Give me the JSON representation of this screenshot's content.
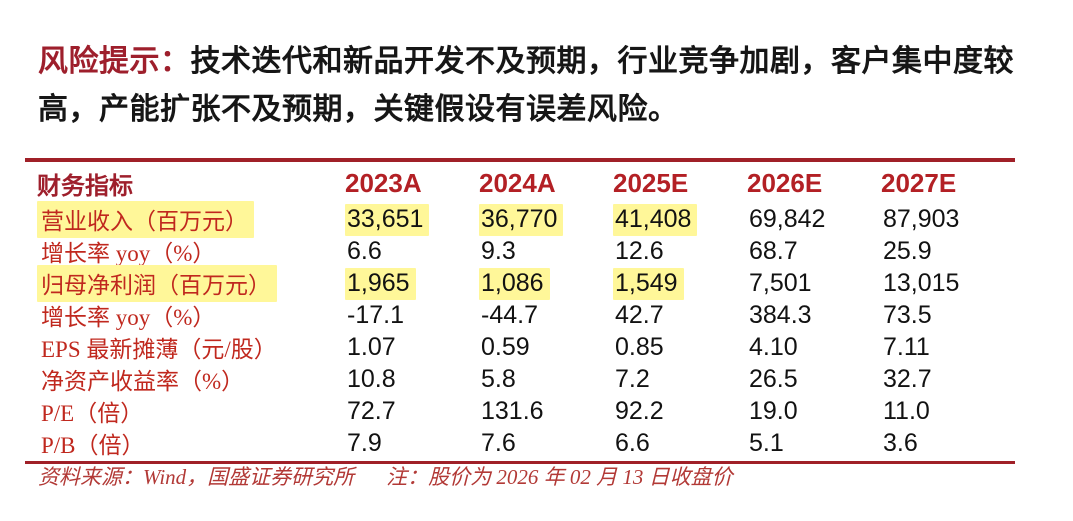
{
  "risk": {
    "label": "风险提示：",
    "text": "技术迭代和新品开发不及预期，行业竞争加剧，客户集中度较高，产能扩张不及预期，关键假设有误差风险。"
  },
  "table": {
    "header": {
      "indicator": "财务指标",
      "years": [
        "2023A",
        "2024A",
        "2025E",
        "2026E",
        "2027E"
      ]
    },
    "rows": [
      {
        "label": "营业收入（百万元）",
        "label_highlight": true,
        "values": [
          "33,651",
          "36,770",
          "41,408",
          "69,842",
          "87,903"
        ],
        "highlight": [
          true,
          true,
          true,
          false,
          false
        ]
      },
      {
        "label": "增长率 yoy（%）",
        "label_highlight": false,
        "values": [
          "6.6",
          "9.3",
          "12.6",
          "68.7",
          "25.9"
        ],
        "highlight": [
          false,
          false,
          false,
          false,
          false
        ]
      },
      {
        "label": "归母净利润（百万元）",
        "label_highlight": true,
        "values": [
          "1,965",
          "1,086",
          "1,549",
          "7,501",
          "13,015"
        ],
        "highlight": [
          true,
          true,
          true,
          false,
          false
        ]
      },
      {
        "label": "增长率 yoy（%）",
        "label_highlight": false,
        "values": [
          "-17.1",
          "-44.7",
          "42.7",
          "384.3",
          "73.5"
        ],
        "highlight": [
          false,
          false,
          false,
          false,
          false
        ]
      },
      {
        "label": "EPS 最新摊薄（元/股）",
        "label_highlight": false,
        "values": [
          "1.07",
          "0.59",
          "0.85",
          "4.10",
          "7.11"
        ],
        "highlight": [
          false,
          false,
          false,
          false,
          false
        ]
      },
      {
        "label": "净资产收益率（%）",
        "label_highlight": false,
        "values": [
          "10.8",
          "5.8",
          "7.2",
          "26.5",
          "32.7"
        ],
        "highlight": [
          false,
          false,
          false,
          false,
          false
        ]
      },
      {
        "label": "P/E（倍）",
        "label_highlight": false,
        "values": [
          "72.7",
          "131.6",
          "92.2",
          "19.0",
          "11.0"
        ],
        "highlight": [
          false,
          false,
          false,
          false,
          false
        ]
      },
      {
        "label": "P/B（倍）",
        "label_highlight": false,
        "values": [
          "7.9",
          "7.6",
          "6.6",
          "5.1",
          "3.6"
        ],
        "highlight": [
          false,
          false,
          false,
          false,
          false
        ]
      }
    ]
  },
  "footer": {
    "source": "资料来源：Wind，国盛证券研究所",
    "note": "注：股价为 2026 年 02 月 13 日收盘价"
  },
  "colors": {
    "rule_dark_red": "#a02028",
    "year_header_red": "#b32025",
    "row_label_red": "#c0281e",
    "risk_label_red": "#9e1f2c",
    "footer_red": "#b23936",
    "highlight_yellow": "#fff799",
    "value_black": "#121212"
  }
}
